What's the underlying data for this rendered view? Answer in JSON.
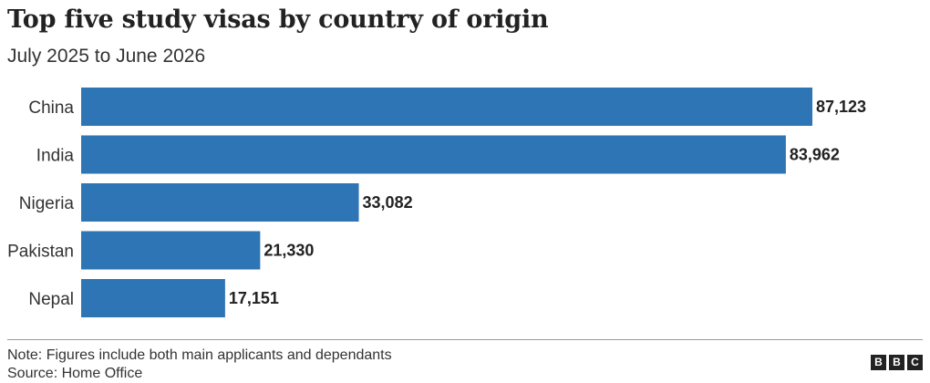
{
  "title": "Top five study visas by country of origin",
  "subtitle": "July 2025 to June 2026",
  "chart_data": {
    "type": "bar",
    "orientation": "horizontal",
    "categories": [
      "China",
      "India",
      "Nigeria",
      "Pakistan",
      "Nepal"
    ],
    "values": [
      87123,
      83962,
      33082,
      21330,
      17151
    ],
    "value_labels": [
      "87,123",
      "83,962",
      "33,082",
      "21,330",
      "17,151"
    ],
    "title": "Top five study visas by country of origin",
    "subtitle": "July 2025 to June 2026",
    "xlim": [
      0,
      87123
    ],
    "grid": false,
    "bar_color": "#2e75b6"
  },
  "footer": {
    "note": "Note: Figures include both main applicants and dependants",
    "source": "Source: Home Office",
    "logo_letters": [
      "B",
      "B",
      "C"
    ]
  },
  "colors": {
    "bar": "#2e75b6",
    "text": "#222222",
    "logo_bg": "#222222"
  }
}
